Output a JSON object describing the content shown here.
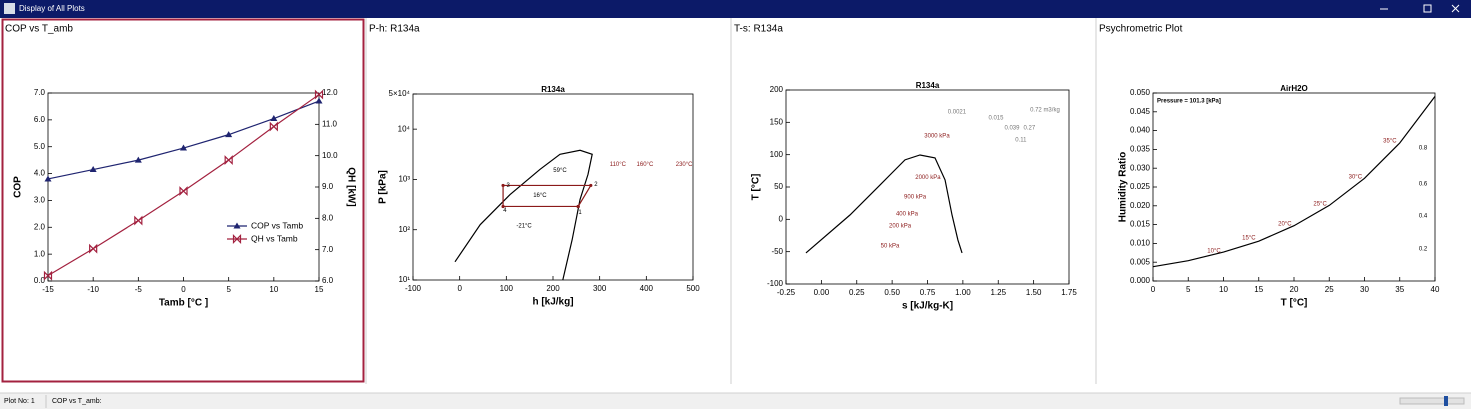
{
  "window": {
    "title": "Display of All Plots"
  },
  "panels": [
    {
      "title": "COP vs T_amb"
    },
    {
      "title": "P-h: R134a"
    },
    {
      "title": "T-s: R134a"
    },
    {
      "title": "Psychrometric Plot"
    }
  ],
  "status_bar": {
    "plot_no": "Plot No: 1",
    "plot_name": "COP vs T_amb:"
  },
  "chart_data": [
    {
      "type": "line",
      "x": [
        -15,
        -10,
        -5,
        0,
        5,
        10,
        15
      ],
      "xlim": [
        -15,
        15
      ],
      "xticks": [
        -15,
        -10,
        -5,
        0,
        5,
        10,
        15
      ],
      "ylim": [
        0,
        7
      ],
      "yticks": [
        {
          "value": 0,
          "label": "0.0"
        },
        {
          "value": 1,
          "label": "1.0"
        },
        {
          "value": 2,
          "label": "2.0"
        },
        {
          "value": 3,
          "label": "3.0"
        },
        {
          "value": 4,
          "label": "4.0"
        },
        {
          "value": 5,
          "label": "5.0"
        },
        {
          "value": 6,
          "label": "6.0"
        },
        {
          "value": 7,
          "label": "7.0"
        }
      ],
      "y2lim": [
        6,
        12
      ],
      "y2ticks": [
        {
          "value": 6,
          "label": "6.0"
        },
        {
          "value": 7,
          "label": "7.0"
        },
        {
          "value": 8,
          "label": "8.0"
        },
        {
          "value": 9,
          "label": "9.0"
        },
        {
          "value": 10,
          "label": "10.0"
        },
        {
          "value": 11,
          "label": "11.0"
        },
        {
          "value": 12,
          "label": "12.0"
        }
      ],
      "xlabel": "Tamb  [°C ]",
      "ylabel": "COP",
      "y2label": "QH  [kW]",
      "legend": "lower right",
      "series": [
        {
          "name": "COP vs Tamb",
          "color": "#1f2470",
          "marker": "triangle",
          "values": [
            3.8,
            4.15,
            4.5,
            4.95,
            5.45,
            6.05,
            6.7
          ]
        },
        {
          "name": "QH vs Tamb",
          "color": "#a3213f",
          "marker": "bowtie",
          "axis": "y2",
          "values": [
            6.17,
            7.03,
            7.93,
            8.87,
            9.86,
            10.93,
            11.95
          ]
        }
      ]
    },
    {
      "type": "line",
      "title": "R134a",
      "log_y": true,
      "xlim": [
        -100,
        500
      ],
      "xticks": [
        -100,
        0,
        100,
        200,
        300,
        400,
        500
      ],
      "ylim": [
        10,
        50000
      ],
      "yticks": [
        {
          "value": 10,
          "label": "10¹"
        },
        {
          "value": 100,
          "label": "10²"
        },
        {
          "value": 1000,
          "label": "10³"
        },
        {
          "value": 10000,
          "label": "10⁴"
        },
        {
          "value": 50000,
          "label": "5×10⁴"
        }
      ],
      "xlabel": "h [kJ/kg]",
      "ylabel": "P [kPa]",
      "series": [
        {
          "color": "#000000",
          "x": [
            -10,
            44,
            108,
            172,
            215,
            258,
            284,
            275,
            258,
            241,
            221
          ],
          "values": [
            23,
            126,
            500,
            1580,
            3160,
            3800,
            3160,
            1260,
            400,
            63,
            10
          ]
        },
        {
          "color": "#8b1a1a",
          "marker": "dot",
          "x": [
            254,
            281,
            93,
            93,
            254
          ],
          "values": [
            290,
            760,
            760,
            290,
            290
          ]
        }
      ],
      "annotations": [
        {
          "text": "59°C",
          "x": 215,
          "y": 1510
        },
        {
          "text": "16°C",
          "x": 172,
          "y": 480
        },
        {
          "text": "-21°C",
          "x": 138,
          "y": 120
        },
        {
          "text": "110°C",
          "x": 339,
          "y": 2000,
          "color": "#8b1a1a"
        },
        {
          "text": "160°C",
          "x": 397,
          "y": 2000,
          "color": "#8b1a1a"
        },
        {
          "text": "230°C",
          "x": 481,
          "y": 2000,
          "color": "#8b1a1a"
        },
        {
          "text": "1",
          "x": 258,
          "y": 219
        },
        {
          "text": "2",
          "x": 292,
          "y": 790
        },
        {
          "text": "3",
          "x": 104,
          "y": 760
        },
        {
          "text": "4",
          "x": 97,
          "y": 240
        }
      ]
    },
    {
      "type": "line",
      "title": "R134a",
      "xlim": [
        -0.25,
        1.75
      ],
      "xticks": [
        -0.25,
        {
          "value": 0,
          "label": "0.00"
        },
        0.25,
        {
          "value": 0.5,
          "label": "0.50"
        },
        0.75,
        {
          "value": 1,
          "label": "1.00"
        },
        1.25,
        {
          "value": 1.5,
          "label": "1.50"
        },
        1.75
      ],
      "ylim": [
        -100,
        200
      ],
      "yticks": [
        -100,
        -50,
        0,
        50,
        100,
        150,
        200
      ],
      "xlabel": "s [kJ/kg-K]",
      "ylabel": "T [°C]",
      "series": [
        {
          "color": "#000000",
          "x": [
            -0.109,
            0.202,
            0.414,
            0.591,
            0.697,
            0.803,
            0.874,
            0.923,
            0.965,
            0.994
          ],
          "values": [
            -52,
            6.7,
            53,
            92,
            99.5,
            95,
            61,
            7,
            -32,
            -52
          ]
        }
      ],
      "annotations": [
        {
          "text": "3000 kPa",
          "x": 0.817,
          "y": 129,
          "color": "#8b1a1a"
        },
        {
          "text": "2000 kPa",
          "x": 0.753,
          "y": 65,
          "color": "#8b1a1a"
        },
        {
          "text": "900 kPa",
          "x": 0.662,
          "y": 35,
          "color": "#8b1a1a"
        },
        {
          "text": "400 kPa",
          "x": 0.605,
          "y": 8,
          "color": "#8b1a1a"
        },
        {
          "text": "200 kPa",
          "x": 0.556,
          "y": -10,
          "color": "#8b1a1a"
        },
        {
          "text": "50 kPa",
          "x": 0.485,
          "y": -41,
          "color": "#8b1a1a"
        },
        {
          "text": "0.0021",
          "x": 0.958,
          "y": 166,
          "color": "#777777"
        },
        {
          "text": "0.015",
          "x": 1.234,
          "y": 157,
          "color": "#777777"
        },
        {
          "text": "0.039",
          "x": 1.347,
          "y": 141,
          "color": "#777777"
        },
        {
          "text": "0.11",
          "x": 1.41,
          "y": 123,
          "color": "#777777"
        },
        {
          "text": "0.27",
          "x": 1.47,
          "y": 141,
          "color": "#777777"
        },
        {
          "text": "0.72 m3/kg",
          "x": 1.58,
          "y": 169,
          "color": "#777777"
        }
      ]
    },
    {
      "type": "line",
      "title": "AirH2O",
      "xlim": [
        0,
        40
      ],
      "xticks": [
        0,
        5,
        10,
        15,
        20,
        25,
        30,
        35,
        40
      ],
      "ylim": [
        0,
        0.05
      ],
      "yticks": [
        {
          "value": 0,
          "label": "0.000"
        },
        0.005,
        {
          "value": 0.01,
          "label": "0.010"
        },
        0.015,
        {
          "value": 0.02,
          "label": "0.020"
        },
        0.025,
        {
          "value": 0.03,
          "label": "0.030"
        },
        0.035,
        {
          "value": 0.04,
          "label": "0.040"
        },
        0.045,
        {
          "value": 0.05,
          "label": "0.050"
        }
      ],
      "xlabel": "T [°C]",
      "ylabel": "Humidity Ratio",
      "series": [
        {
          "color": "#000000",
          "x": [
            0,
            5,
            10,
            15,
            20,
            25,
            30,
            35,
            40
          ],
          "values": [
            0.0038,
            0.0054,
            0.0077,
            0.0106,
            0.0147,
            0.0201,
            0.0273,
            0.0367,
            0.0491
          ]
        }
      ],
      "annotations": [
        {
          "text": "Pressure = 101.3 [kPa]",
          "x": 0.57,
          "y": 0.0479,
          "anchor": "start"
        },
        {
          "text": "10°C",
          "x": 8.65,
          "y": 0.008,
          "color": "#8b1a1a"
        },
        {
          "text": "15°C",
          "x": 13.6,
          "y": 0.0114,
          "color": "#8b1a1a"
        },
        {
          "text": "20°C",
          "x": 18.7,
          "y": 0.0152,
          "color": "#8b1a1a"
        },
        {
          "text": "25°C",
          "x": 23.7,
          "y": 0.0205,
          "color": "#8b1a1a"
        },
        {
          "text": "30°C",
          "x": 28.7,
          "y": 0.0277,
          "color": "#8b1a1a"
        },
        {
          "text": "35°C",
          "x": 33.6,
          "y": 0.0372,
          "color": "#8b1a1a"
        },
        {
          "text": "0.8",
          "x": 38.3,
          "y": 0.0354
        },
        {
          "text": "0.6",
          "x": 38.3,
          "y": 0.0258
        },
        {
          "text": "0.4",
          "x": 38.3,
          "y": 0.0173
        },
        {
          "text": "0.2",
          "x": 38.3,
          "y": 0.0085
        }
      ]
    }
  ]
}
